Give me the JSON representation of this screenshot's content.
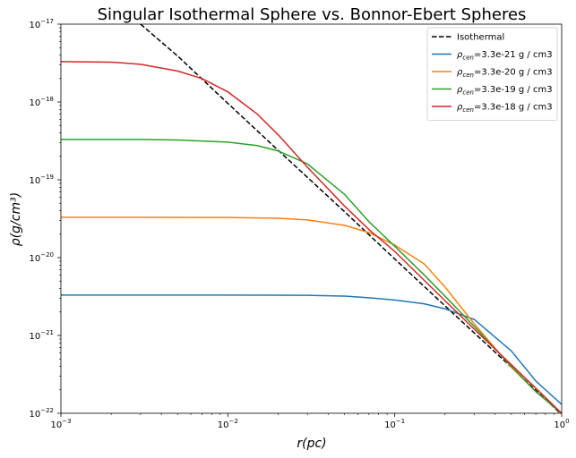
{
  "chart_data": {
    "type": "line",
    "title": "Singular Isothermal Sphere vs. Bonnor-Ebert Spheres",
    "xlabel": "r(pc)",
    "ylabel": "ρ(g/cm³)",
    "xscale": "log",
    "yscale": "log",
    "xlim": [
      0.001,
      1
    ],
    "ylim": [
      1e-22,
      1e-17
    ],
    "x_ticks": [
      {
        "base": "10",
        "exp": "−3"
      },
      {
        "base": "10",
        "exp": "−2"
      },
      {
        "base": "10",
        "exp": "−1"
      },
      {
        "base": "10",
        "exp": "0"
      }
    ],
    "y_ticks": [
      {
        "base": "10",
        "exp": "−22"
      },
      {
        "base": "10",
        "exp": "−21"
      },
      {
        "base": "10",
        "exp": "−20"
      },
      {
        "base": "10",
        "exp": "−19"
      },
      {
        "base": "10",
        "exp": "−18"
      },
      {
        "base": "10",
        "exp": "−17"
      }
    ],
    "grid": false,
    "legend_position": "top-right",
    "series": [
      {
        "name": "Isothermal",
        "color": "#000000",
        "dash": "dashed",
        "x": [
          0.003,
          0.005,
          0.01,
          0.02,
          0.05,
          0.1,
          0.2,
          0.5,
          1.0
        ],
        "y": [
          1e-17,
          3.9e-18,
          9.6e-19,
          2.4e-19,
          3.9e-20,
          9.6e-21,
          2.4e-21,
          3.9e-22,
          9.6e-23
        ]
      },
      {
        "name": "ρcen=3.3e-21 g / cm3",
        "label_main": "ρ",
        "label_sub": "cen",
        "label_rest": "=3.3e-21 g / cm3",
        "color": "#1f77b4",
        "dash": "solid",
        "x": [
          0.001,
          0.003,
          0.01,
          0.03,
          0.05,
          0.07,
          0.1,
          0.15,
          0.2,
          0.3,
          0.5,
          0.7,
          1.0
        ],
        "y": [
          3.3e-21,
          3.3e-21,
          3.3e-21,
          3.28e-21,
          3.2e-21,
          3.05e-21,
          2.85e-21,
          2.55e-21,
          2.2e-21,
          1.6e-21,
          6.3e-22,
          2.6e-22,
          1.3e-22
        ]
      },
      {
        "name": "ρcen=3.3e-20 g / cm3",
        "label_main": "ρ",
        "label_sub": "cen",
        "label_rest": "=3.3e-20 g / cm3",
        "color": "#ff7f0e",
        "dash": "solid",
        "x": [
          0.001,
          0.003,
          0.01,
          0.02,
          0.03,
          0.05,
          0.07,
          0.1,
          0.15,
          0.2,
          0.3,
          0.5,
          0.7,
          1.0
        ],
        "y": [
          3.3e-20,
          3.3e-20,
          3.28e-20,
          3.2e-20,
          3.05e-20,
          2.6e-20,
          2.1e-20,
          1.45e-20,
          8.3e-21,
          4.2e-21,
          1.4e-21,
          3.9e-22,
          1.9e-22,
          1e-22
        ]
      },
      {
        "name": "ρcen=3.3e-19 g / cm3",
        "label_main": "ρ",
        "label_sub": "cen",
        "label_rest": "=3.3e-19 g / cm3",
        "color": "#2ca02c",
        "dash": "solid",
        "x": [
          0.001,
          0.003,
          0.005,
          0.01,
          0.015,
          0.02,
          0.03,
          0.05,
          0.07,
          0.1,
          0.15,
          0.2,
          0.3,
          0.5,
          0.7,
          1.0
        ],
        "y": [
          3.3e-19,
          3.3e-19,
          3.25e-19,
          3.05e-19,
          2.75e-19,
          2.35e-19,
          1.6e-19,
          6.5e-20,
          2.9e-20,
          1.4e-20,
          6e-21,
          3.2e-21,
          1.3e-21,
          4e-22,
          1.9e-22,
          1e-22
        ]
      },
      {
        "name": "ρcen=3.3e-18 g / cm3",
        "label_main": "ρ",
        "label_sub": "cen",
        "label_rest": "=3.3e-18 g / cm3",
        "color": "#d62728",
        "dash": "solid",
        "x": [
          0.001,
          0.002,
          0.003,
          0.005,
          0.007,
          0.01,
          0.015,
          0.02,
          0.03,
          0.05,
          0.07,
          0.1,
          0.2,
          0.3,
          0.5,
          0.7,
          1.0
        ],
        "y": [
          3.3e-18,
          3.25e-18,
          3.05e-18,
          2.5e-18,
          2e-18,
          1.35e-18,
          7e-19,
          3.8e-19,
          1.45e-19,
          4.6e-20,
          2.3e-20,
          1.2e-20,
          2.8e-21,
          1.2e-21,
          4.2e-22,
          2.1e-22,
          1e-22
        ]
      }
    ]
  }
}
